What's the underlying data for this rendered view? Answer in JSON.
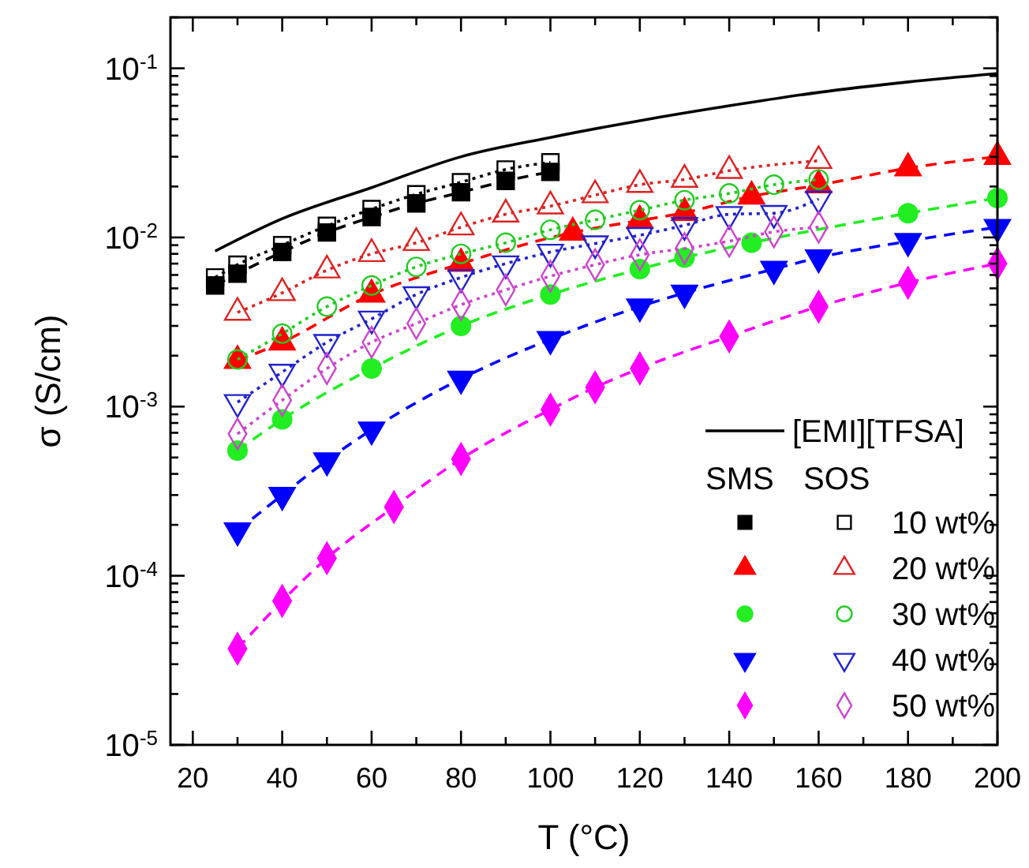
{
  "chart_data": {
    "type": "line",
    "xlabel": "T (°C)",
    "ylabel": "σ (S/cm)",
    "log": "y",
    "legend": "bottom right",
    "annotations": [
      "SMS",
      "SOS"
    ],
    "xlim": [
      15,
      200
    ],
    "ylim": [
      1e-05,
      0.2
    ],
    "xticks": [
      20,
      {
        "value": 30,
        "label": null
      },
      40,
      {
        "value": 50,
        "label": null
      },
      60,
      {
        "value": 70,
        "label": null
      },
      80,
      {
        "value": 90,
        "label": null
      },
      100,
      {
        "value": 110,
        "label": null
      },
      120,
      {
        "value": 130,
        "label": null
      },
      140,
      {
        "value": 150,
        "label": null
      },
      160,
      {
        "value": 170,
        "label": null
      },
      180,
      {
        "value": 190,
        "label": null
      },
      200
    ],
    "yticks": [
      {
        "value": 1e-05,
        "label": "10$^{-5}$"
      },
      {
        "value": 2e-05,
        "label": null
      },
      {
        "value": 3e-05,
        "label": null
      },
      {
        "value": 4e-05,
        "label": null
      },
      {
        "value": 5e-05,
        "label": null
      },
      {
        "value": 6e-05,
        "label": null
      },
      {
        "value": 7e-05,
        "label": null
      },
      {
        "value": 8e-05,
        "label": null
      },
      {
        "value": 9e-05,
        "label": null
      },
      {
        "value": 0.0001,
        "label": "10$^{-4}$"
      },
      {
        "value": 0.0002,
        "label": null
      },
      {
        "value": 0.0003,
        "label": null
      },
      {
        "value": 0.0004,
        "label": null
      },
      {
        "value": 0.0005,
        "label": null
      },
      {
        "value": 0.0006,
        "label": null
      },
      {
        "value": 0.0007,
        "label": null
      },
      {
        "value": 0.0008,
        "label": null
      },
      {
        "value": 0.0009,
        "label": null
      },
      {
        "value": 0.001,
        "label": "10$^{-3}$"
      },
      {
        "value": 0.002,
        "label": null
      },
      {
        "value": 0.003,
        "label": null
      },
      {
        "value": 0.004,
        "label": null
      },
      {
        "value": 0.005,
        "label": null
      },
      {
        "value": 0.006,
        "label": null
      },
      {
        "value": 0.007,
        "label": null
      },
      {
        "value": 0.008,
        "label": null
      },
      {
        "value": 0.009,
        "label": null
      },
      {
        "value": 0.01,
        "label": "10$^{-2}$"
      },
      {
        "value": 0.02,
        "label": null
      },
      {
        "value": 0.03,
        "label": null
      },
      {
        "value": 0.04,
        "label": null
      },
      {
        "value": 0.05,
        "label": null
      },
      {
        "value": 0.06,
        "label": null
      },
      {
        "value": 0.07,
        "label": null
      },
      {
        "value": 0.08,
        "label": null
      },
      {
        "value": 0.09,
        "label": null
      },
      {
        "value": 0.1,
        "label": "10$^{-1}$"
      },
      {
        "value": 0.2,
        "label": null
      }
    ],
    "series": [
      {
        "name": "[EMI][TFSA]",
        "color": "#000000",
        "marker": "none",
        "line_style": "solid",
        "x": [
          25,
          40,
          60,
          80,
          100,
          120,
          140,
          160,
          180,
          200
        ],
        "values": [
          0.0083,
          0.0129,
          0.0197,
          0.03,
          0.039,
          0.049,
          0.06,
          0.072,
          0.083,
          0.093
        ]
      },
      {
        "color": "#000000",
        "marker": "square",
        "line_style": "dashed",
        "x": [
          25,
          30,
          40,
          50,
          60,
          70,
          80,
          90,
          100
        ],
        "values": [
          0.0052,
          0.0061,
          0.0082,
          0.0107,
          0.0132,
          0.0159,
          0.0185,
          0.0216,
          0.0244
        ]
      },
      {
        "name": "10 wt%",
        "color": "#000000",
        "marker": "square",
        "line_style": "dotted",
        "x": [
          25,
          30,
          40,
          50,
          60,
          70,
          80,
          90,
          100
        ],
        "values": [
          0.0058,
          0.0069,
          0.009,
          0.0117,
          0.0147,
          0.018,
          0.0212,
          0.0252,
          0.0278
        ]
      },
      {
        "color": "#ff0000",
        "marker": "triangle",
        "line_style": "dashed",
        "x": [
          30,
          40,
          60,
          80,
          105,
          120,
          130,
          145,
          160,
          180,
          200
        ],
        "values": [
          0.00187,
          0.0024,
          0.0046,
          0.007,
          0.0107,
          0.0126,
          0.014,
          0.0175,
          0.0204,
          0.0257,
          0.03
        ]
      },
      {
        "name": "20 wt%",
        "color": "#dd2222",
        "marker": "triangle",
        "line_style": "dotted",
        "x": [
          30,
          40,
          50,
          60,
          70,
          80,
          90,
          100,
          110,
          120,
          130,
          140,
          160
        ],
        "values": [
          0.0036,
          0.0047,
          0.0064,
          0.008,
          0.0093,
          0.0115,
          0.0137,
          0.0153,
          0.0178,
          0.0205,
          0.022,
          0.0248,
          0.0284
        ]
      },
      {
        "color": "#22ee22",
        "marker": "circle",
        "line_style": "dashed",
        "x": [
          30,
          40,
          60,
          80,
          100,
          120,
          130,
          145,
          180,
          200
        ],
        "values": [
          0.00055,
          0.00084,
          0.00168,
          0.003,
          0.0046,
          0.0065,
          0.0076,
          0.0093,
          0.0139,
          0.0171
        ]
      },
      {
        "name": "30 wt%",
        "color": "#22cc22",
        "marker": "circle",
        "line_style": "dotted",
        "x": [
          30,
          40,
          50,
          60,
          70,
          80,
          90,
          100,
          110,
          120,
          130,
          140,
          150,
          160
        ],
        "values": [
          0.0019,
          0.0027,
          0.0039,
          0.0052,
          0.0067,
          0.008,
          0.0093,
          0.0111,
          0.0127,
          0.0145,
          0.0166,
          0.0182,
          0.0205,
          0.022
        ]
      },
      {
        "color": "#0000ff",
        "marker": "triangle-down",
        "line_style": "dashed",
        "x": [
          30,
          40,
          50,
          60,
          80,
          100,
          120,
          130,
          150,
          160,
          180,
          200
        ],
        "values": [
          0.000185,
          0.0003,
          0.00048,
          0.00073,
          0.00146,
          0.0025,
          0.0039,
          0.0047,
          0.0065,
          0.0076,
          0.0095,
          0.0115
        ]
      },
      {
        "name": "40 wt%",
        "color": "#2222cc",
        "marker": "triangle-down",
        "line_style": "dotted",
        "x": [
          30,
          40,
          50,
          60,
          70,
          80,
          90,
          100,
          110,
          120,
          130,
          140,
          150,
          160
        ],
        "values": [
          0.00106,
          0.0016,
          0.0024,
          0.0033,
          0.0046,
          0.0058,
          0.007,
          0.0082,
          0.0092,
          0.0103,
          0.0118,
          0.0137,
          0.0139,
          0.0169
        ]
      },
      {
        "color": "#ff00ff",
        "marker": "diamond",
        "line_style": "dashed",
        "x": [
          30,
          40,
          50,
          65,
          80,
          100,
          110,
          120,
          140,
          160,
          180,
          200
        ],
        "values": [
          3.7e-05,
          7.1e-05,
          0.000127,
          0.000255,
          0.00049,
          0.00096,
          0.0013,
          0.00168,
          0.0026,
          0.0039,
          0.0054,
          0.007
        ]
      },
      {
        "name": "50 wt%",
        "color": "#cc44cc",
        "marker": "diamond",
        "line_style": "dotted",
        "x": [
          30,
          40,
          50,
          60,
          70,
          80,
          90,
          100,
          110,
          120,
          130,
          140,
          150,
          160
        ],
        "values": [
          0.00069,
          0.00109,
          0.00168,
          0.0024,
          0.0031,
          0.004,
          0.0049,
          0.0059,
          0.0069,
          0.0079,
          0.0086,
          0.0095,
          0.0108,
          0.0115
        ]
      }
    ]
  }
}
